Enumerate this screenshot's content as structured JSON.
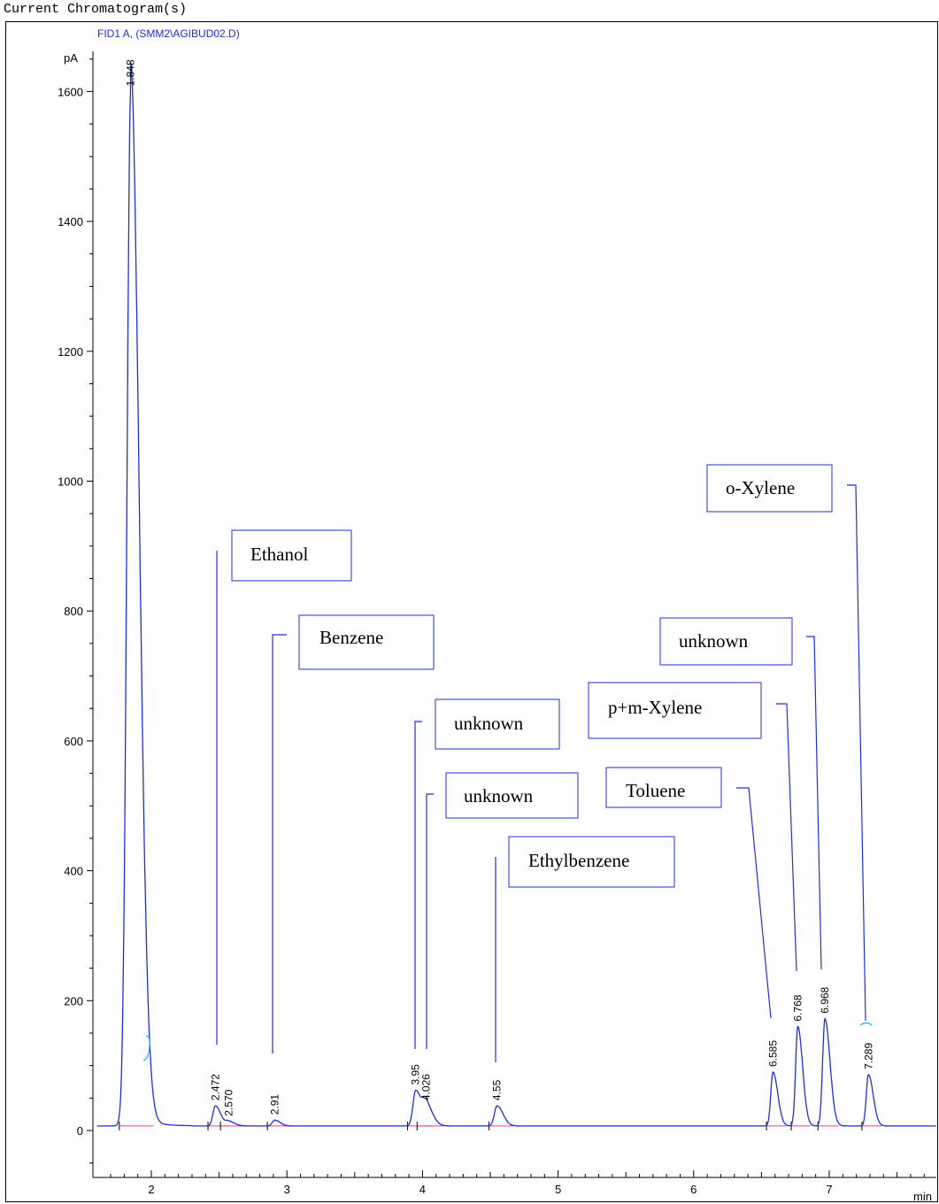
{
  "window": {
    "title": "Current Chromatogram(s)"
  },
  "chart_data": {
    "type": "line",
    "signal_label": "FID1 A, (SMM2\\AGIBUD02.D)",
    "ylabel": "pA",
    "xlabel": "min",
    "xlim": [
      1.6,
      8.45
    ],
    "ylim": [
      -90,
      1720
    ],
    "x_ticks": [
      2,
      3,
      4,
      5,
      6,
      7
    ],
    "y_ticks": [
      0,
      200,
      400,
      600,
      800,
      1000,
      1200,
      1400,
      1600
    ],
    "grid": false,
    "colors": {
      "trace": "#1f2fd6",
      "baseline": "#e0409a",
      "annotation": "#1f2fd6",
      "axis": "#000000"
    },
    "baseline_level": 7,
    "peaks": [
      {
        "label": "1.848",
        "rt": 1.848,
        "height": 1600
      },
      {
        "label": "2.472",
        "rt": 2.472,
        "height": 38
      },
      {
        "label": "2.570",
        "rt": 2.57,
        "height": 14
      },
      {
        "label": "2.91",
        "rt": 2.91,
        "height": 16
      },
      {
        "label": "3.95",
        "rt": 3.95,
        "height": 62
      },
      {
        "label": "4.026",
        "rt": 4.026,
        "height": 38
      },
      {
        "label": "4.55",
        "rt": 4.55,
        "height": 38
      },
      {
        "label": "6.585",
        "rt": 6.585,
        "height": 90
      },
      {
        "label": "6.768",
        "rt": 6.768,
        "height": 160
      },
      {
        "label": "6.968",
        "rt": 6.968,
        "height": 172
      },
      {
        "label": "7.289",
        "rt": 7.289,
        "height": 86
      }
    ],
    "annotations": [
      {
        "text": "Ethanol",
        "rt": 2.472
      },
      {
        "text": "Benzene",
        "rt": 2.91
      },
      {
        "text": "unknown",
        "rt": 3.95
      },
      {
        "text": "unknown",
        "rt": 4.026
      },
      {
        "text": "Ethylbenzene",
        "rt": 4.55
      },
      {
        "text": "Toluene",
        "rt": 6.585
      },
      {
        "text": "p+m-Xylene",
        "rt": 6.768
      },
      {
        "text": "unknown",
        "rt": 6.968
      },
      {
        "text": "o-Xylene",
        "rt": 7.289
      }
    ]
  }
}
